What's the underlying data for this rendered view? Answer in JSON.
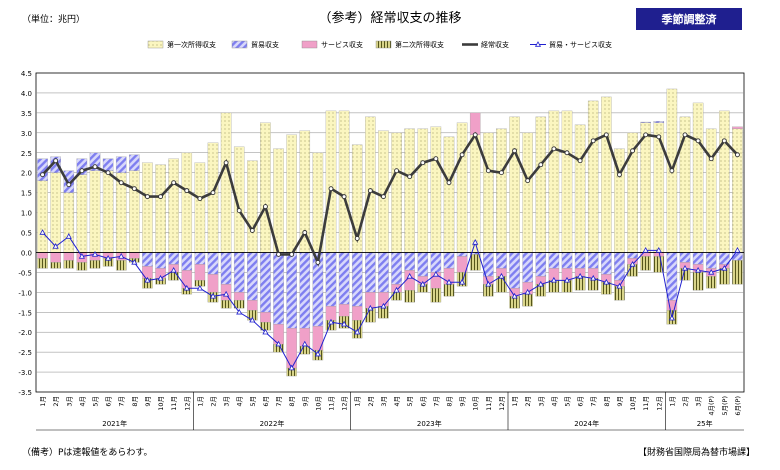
{
  "header": {
    "unit_label": "（単位：兆円）",
    "title": "（参考）経常収支の推移",
    "badge": "季節調整済"
  },
  "footer": {
    "note": "（備考）Pは速報値をあらわす。",
    "source": "【財務省国際局為替市場課】"
  },
  "colors": {
    "primary_income": "#fbf6c0",
    "trade": "#8e8ef0",
    "services": "#f0a0c8",
    "secondary_income": "#d8d48a",
    "current_account": "#3c3c3c",
    "goods_services": "#2020d0"
  },
  "chart_data": {
    "type": "bar",
    "stacked": true,
    "legend": [
      "第一次所得収支",
      "貿易収支",
      "サービス収支",
      "第二次所得収支",
      "経常収支",
      "貿易・サービス収支"
    ],
    "legend_position": "top",
    "grid": true,
    "ylim": [
      -3.5,
      4.5
    ],
    "ytick_step": 0.5,
    "categories": [
      "1月",
      "2月",
      "3月",
      "4月",
      "5月",
      "6月",
      "7月",
      "8月",
      "9月",
      "10月",
      "11月",
      "12月",
      "1月",
      "2月",
      "3月",
      "4月",
      "5月",
      "6月",
      "7月",
      "8月",
      "9月",
      "10月",
      "11月",
      "12月",
      "1月",
      "2月",
      "3月",
      "4月",
      "5月",
      "6月",
      "7月",
      "8月",
      "9月",
      "10月",
      "11月",
      "12月",
      "1月",
      "2月",
      "3月",
      "4月",
      "5月",
      "6月",
      "7月",
      "8月",
      "9月",
      "10月",
      "11月",
      "12月",
      "1月",
      "2月",
      "3月",
      "4月",
      "5月",
      "6月"
    ],
    "category_notes": [
      "",
      "",
      "",
      "",
      "",
      "",
      "",
      "",
      "",
      "",
      "",
      "",
      "",
      "",
      "",
      "",
      "",
      "",
      "",
      "",
      "",
      "",
      "",
      "",
      "",
      "",
      "",
      "",
      "",
      "",
      "",
      "",
      "",
      "",
      "",
      "",
      "",
      "",
      "",
      "",
      "",
      "",
      "",
      "",
      "",
      "",
      "",
      "",
      "",
      "",
      "",
      "(P)",
      "(P)",
      "(P)"
    ],
    "year_labels": [
      {
        "label": "2021年",
        "start": 0,
        "end": 11
      },
      {
        "label": "2022年",
        "start": 12,
        "end": 23
      },
      {
        "label": "2023年",
        "start": 24,
        "end": 35
      },
      {
        "label": "2024年",
        "start": 36,
        "end": 47
      },
      {
        "label": "25年",
        "start": 48,
        "end": 53
      }
    ],
    "series": [
      {
        "name": "第一次所得収支",
        "kind": "bar",
        "values": [
          1.8,
          2.0,
          1.5,
          1.95,
          2.05,
          2.05,
          2.0,
          2.05,
          2.25,
          2.2,
          2.35,
          2.5,
          2.25,
          2.75,
          3.5,
          2.65,
          2.3,
          3.25,
          2.6,
          2.95,
          3.05,
          2.5,
          3.55,
          3.55,
          2.7,
          3.4,
          3.05,
          3.0,
          3.1,
          3.1,
          3.15,
          2.9,
          3.25,
          2.95,
          3.0,
          3.1,
          3.4,
          3.0,
          3.4,
          3.55,
          3.55,
          3.2,
          3.8,
          3.9,
          2.6,
          3.0,
          3.25,
          3.25,
          4.1,
          3.4,
          3.75,
          3.1,
          3.55,
          3.1
        ]
      },
      {
        "name": "貿易収支",
        "kind": "bar",
        "values": [
          0.55,
          0.4,
          0.55,
          0.4,
          0.45,
          0.3,
          0.4,
          0.4,
          -0.35,
          -0.4,
          -0.3,
          -0.45,
          -0.3,
          -0.55,
          -0.8,
          -1.0,
          -1.2,
          -1.5,
          -1.8,
          -1.9,
          -1.9,
          -1.85,
          -1.35,
          -1.3,
          -1.35,
          -1.0,
          -1.0,
          -0.8,
          -0.45,
          -0.6,
          -0.5,
          -0.4,
          -0.1,
          -0.05,
          -0.6,
          -0.4,
          -0.9,
          -0.75,
          -0.6,
          -0.4,
          -0.4,
          -0.4,
          -0.4,
          -0.55,
          -0.7,
          -0.15,
          0.02,
          0.04,
          -1.2,
          -0.25,
          -0.3,
          -0.4,
          -0.3,
          -0.2
        ]
      },
      {
        "name": "サービス収支",
        "kind": "bar",
        "values": [
          -0.15,
          -0.25,
          -0.2,
          -0.25,
          -0.2,
          -0.15,
          -0.2,
          -0.15,
          -0.3,
          -0.25,
          -0.2,
          -0.45,
          -0.4,
          -0.45,
          -0.4,
          -0.2,
          -0.25,
          -0.25,
          -0.5,
          -1.0,
          -0.45,
          -0.6,
          -0.35,
          -0.3,
          -0.35,
          -0.4,
          -0.35,
          -0.2,
          -0.5,
          -0.2,
          -0.4,
          -0.4,
          -0.4,
          0.55,
          -0.2,
          -0.2,
          -0.2,
          -0.3,
          -0.2,
          -0.3,
          -0.3,
          -0.2,
          -0.25,
          -0.2,
          -0.15,
          -0.15,
          -0.1,
          -0.1,
          -0.25,
          -0.15,
          -0.2,
          -0.2,
          -0.1,
          0.05
        ]
      },
      {
        "name": "第二次所得収支",
        "kind": "bar",
        "values": [
          -0.25,
          -0.15,
          -0.2,
          -0.2,
          -0.2,
          -0.2,
          -0.25,
          -0.1,
          -0.25,
          -0.15,
          -0.2,
          -0.15,
          -0.15,
          -0.25,
          -0.2,
          -0.2,
          -0.25,
          -0.2,
          -0.2,
          -0.2,
          -0.2,
          -0.25,
          -0.25,
          -0.3,
          -0.45,
          -0.35,
          -0.3,
          -0.2,
          -0.3,
          -0.2,
          -0.35,
          -0.3,
          -0.35,
          -0.4,
          -0.3,
          -0.4,
          -0.3,
          -0.3,
          -0.3,
          -0.3,
          -0.3,
          -0.35,
          -0.3,
          -0.3,
          -0.35,
          -0.3,
          -0.35,
          -0.4,
          -0.35,
          -0.3,
          -0.45,
          -0.3,
          -0.4,
          -0.6
        ]
      },
      {
        "name": "経常収支",
        "kind": "line",
        "values": [
          1.95,
          2.3,
          1.7,
          2.05,
          2.15,
          2.0,
          1.75,
          1.6,
          1.4,
          1.4,
          1.75,
          1.55,
          1.35,
          1.5,
          2.25,
          1.05,
          0.55,
          1.15,
          -0.05,
          -0.05,
          0.5,
          -0.25,
          1.6,
          1.4,
          0.35,
          1.55,
          1.4,
          2.05,
          1.9,
          2.25,
          2.35,
          1.75,
          2.45,
          2.95,
          2.05,
          2.0,
          2.55,
          1.8,
          2.2,
          2.6,
          2.5,
          2.3,
          2.8,
          2.95,
          1.95,
          2.55,
          2.95,
          2.9,
          2.05,
          2.95,
          2.8,
          2.35,
          2.8,
          2.45
        ]
      },
      {
        "name": "貿易・サービス収支",
        "kind": "line",
        "values": [
          0.5,
          0.15,
          0.4,
          -0.1,
          -0.05,
          -0.15,
          -0.1,
          -0.25,
          -0.7,
          -0.65,
          -0.45,
          -0.9,
          -0.9,
          -1.1,
          -1.05,
          -1.5,
          -1.7,
          -2.0,
          -2.3,
          -2.9,
          -2.3,
          -2.55,
          -1.75,
          -1.8,
          -2.0,
          -1.4,
          -1.35,
          -0.95,
          -0.6,
          -0.8,
          -0.55,
          -0.75,
          -0.75,
          0.25,
          -0.8,
          -0.6,
          -1.1,
          -1.0,
          -0.8,
          -0.7,
          -0.7,
          -0.6,
          -0.65,
          -0.75,
          -0.85,
          -0.3,
          0.05,
          0.05,
          -1.65,
          -0.4,
          -0.45,
          -0.5,
          -0.4,
          0.05
        ]
      }
    ]
  }
}
